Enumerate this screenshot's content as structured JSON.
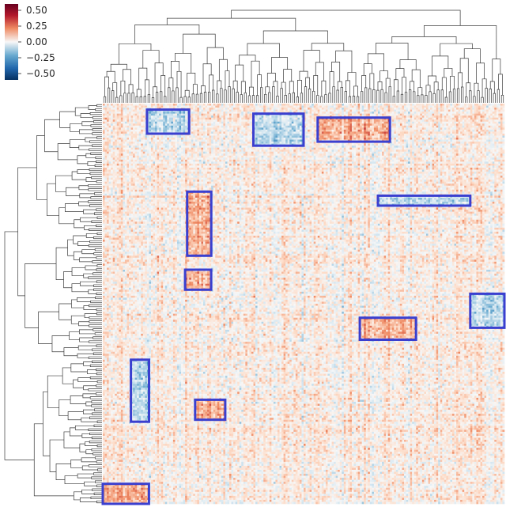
{
  "chart_data": {
    "type": "heatmap",
    "title": "",
    "xlabel": "",
    "ylabel": "",
    "colormap": "diverging red-white-blue (RdBu_r)",
    "colorbar": {
      "range": [
        -0.6,
        0.6
      ],
      "ticks": [
        {
          "value": 0.5,
          "label": "0.50"
        },
        {
          "value": 0.25,
          "label": "0.25"
        },
        {
          "value": 0.0,
          "label": "0.00"
        },
        {
          "value": -0.25,
          "label": "−0.25"
        },
        {
          "value": -0.5,
          "label": "−0.50"
        }
      ],
      "placement": "top-left"
    },
    "colors": {
      "high": "#b2182b",
      "mid": "#f7f7f7",
      "low": "#2166ac",
      "box": "#3a3fcf"
    },
    "n_rows": 200,
    "n_cols": 200,
    "row_dendrogram": "left",
    "col_dendrogram": "top",
    "highlight_regions": [
      {
        "rows": [
          3,
          15
        ],
        "cols": [
          22,
          43
        ],
        "sign": "negative"
      },
      {
        "rows": [
          5,
          21
        ],
        "cols": [
          75,
          100
        ],
        "sign": "negative"
      },
      {
        "rows": [
          7,
          19
        ],
        "cols": [
          107,
          143
        ],
        "sign": "positive"
      },
      {
        "rows": [
          46,
          51
        ],
        "cols": [
          137,
          183
        ],
        "sign": "negative"
      },
      {
        "rows": [
          44,
          76
        ],
        "cols": [
          42,
          54
        ],
        "sign": "positive"
      },
      {
        "rows": [
          83,
          93
        ],
        "cols": [
          41,
          54
        ],
        "sign": "positive"
      },
      {
        "rows": [
          95,
          112
        ],
        "cols": [
          183,
          200
        ],
        "sign": "negative"
      },
      {
        "rows": [
          107,
          118
        ],
        "cols": [
          128,
          156
        ],
        "sign": "positive"
      },
      {
        "rows": [
          128,
          159
        ],
        "cols": [
          14,
          23
        ],
        "sign": "negative"
      },
      {
        "rows": [
          148,
          158
        ],
        "cols": [
          46,
          61
        ],
        "sign": "positive"
      },
      {
        "rows": [
          190,
          200
        ],
        "cols": [
          0,
          23
        ],
        "sign": "positive"
      }
    ]
  }
}
